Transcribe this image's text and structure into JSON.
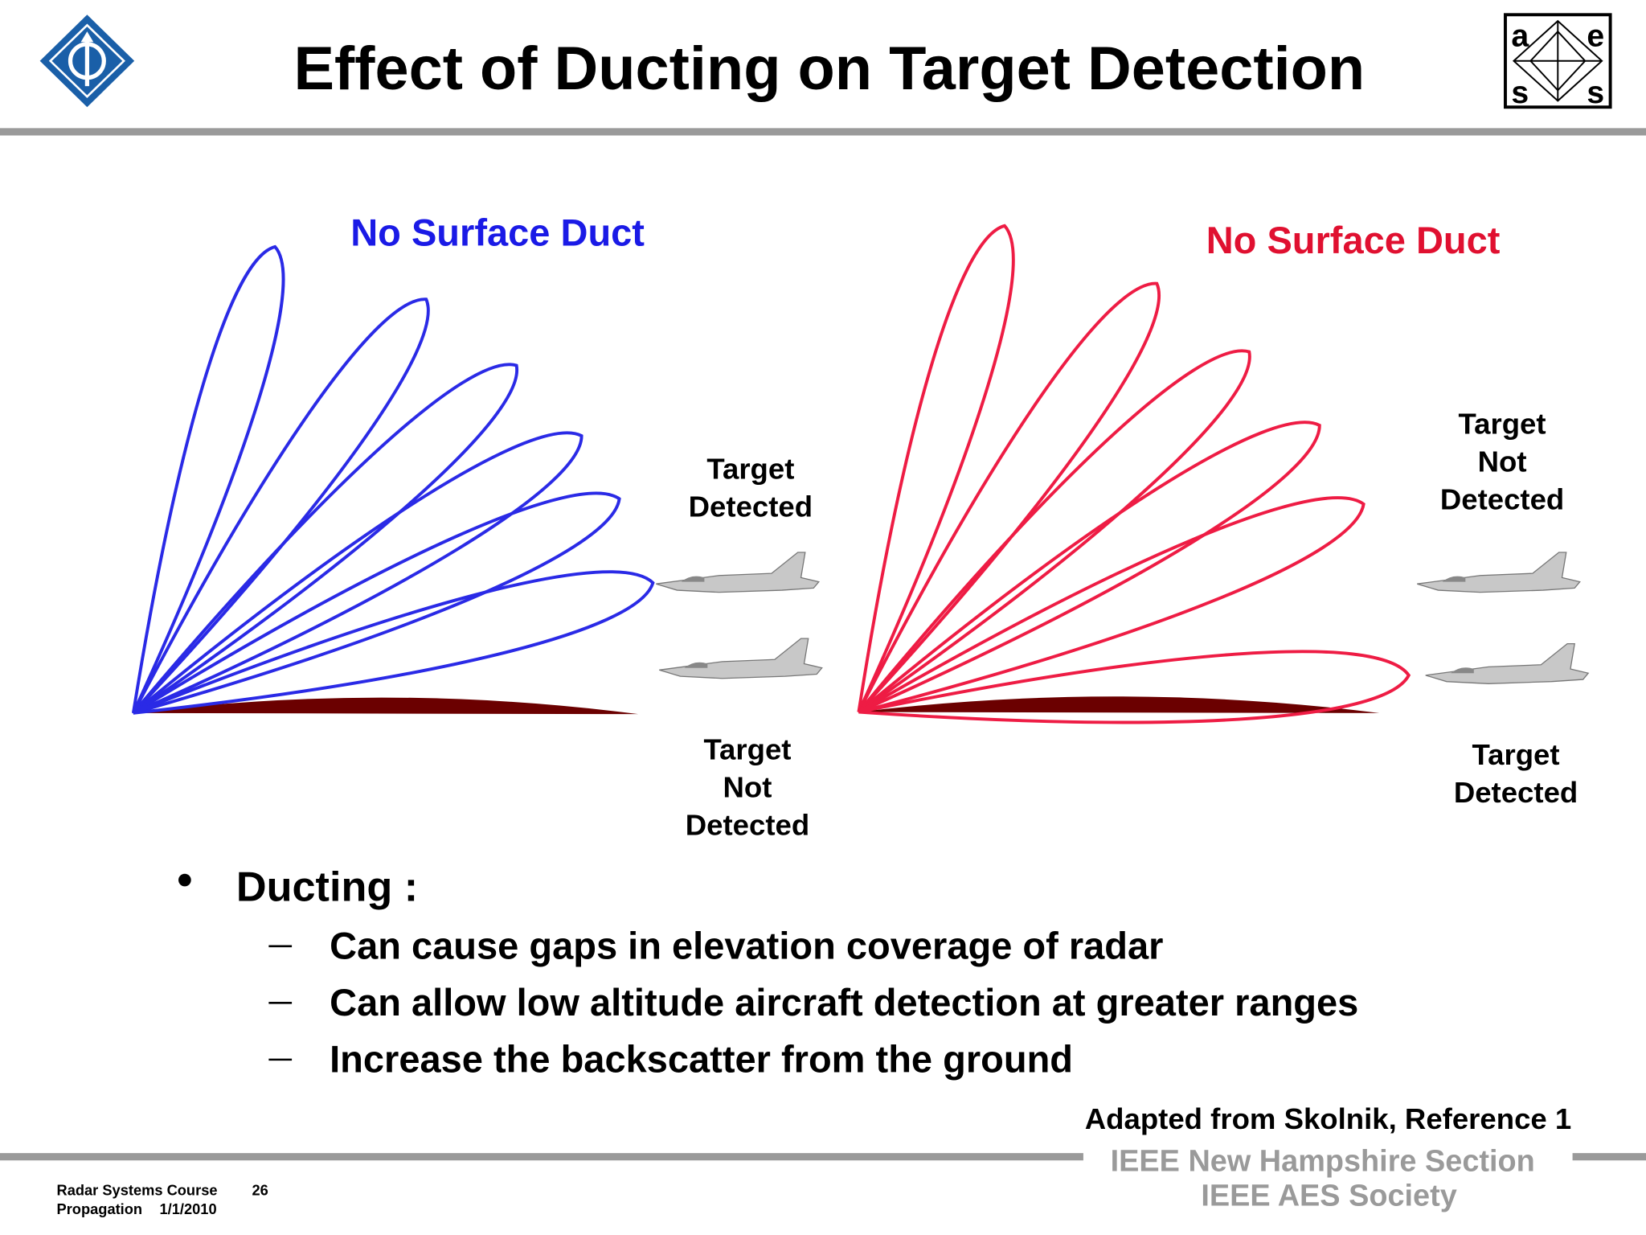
{
  "header": {
    "title": "Effect of Ducting on Target Detection",
    "logo_aess": [
      "a",
      "e",
      "s",
      "s"
    ]
  },
  "diagrams": {
    "left": {
      "title": "No Surface Duct",
      "upper_label": [
        "Target",
        "Detected"
      ],
      "lower_label": [
        "Target",
        "Not",
        "Detected"
      ]
    },
    "right": {
      "title": "No Surface Duct",
      "upper_label": [
        "Target",
        "Not",
        "Detected"
      ],
      "lower_label": [
        "Target",
        "Detected"
      ]
    }
  },
  "bullets": {
    "heading": "Ducting :",
    "items": [
      "Can cause gaps in elevation coverage of radar",
      "Can allow low altitude aircraft detection at greater ranges",
      "Increase the backscatter from the ground"
    ]
  },
  "source": "Adapted from Skolnik, Reference 1",
  "footer": {
    "course": "Radar Systems Course",
    "page": "26",
    "topic": "Propagation",
    "date": "1/1/2010",
    "section": "IEEE New Hampshire Section",
    "society": "IEEE AES Society"
  }
}
